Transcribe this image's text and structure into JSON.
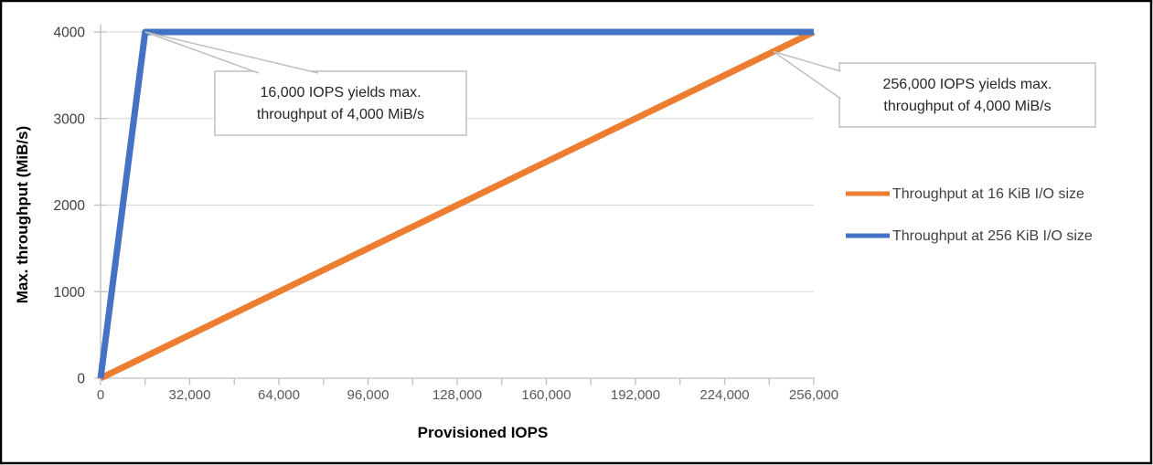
{
  "colors": {
    "series_16kib_orange": "#ED7D31",
    "series_256kib_blue": "#4472C4",
    "gridline": "#D9D9D9",
    "axis": "#BFBFBF",
    "x_tick_label": "#595959",
    "y_tick_label": "#404040",
    "callout_border": "#BFBFBF",
    "callout_fill": "#FFFFFF",
    "frame_border": "#000000"
  },
  "chart_data": {
    "type": "line",
    "title": "",
    "xlabel": "Provisioned IOPS",
    "ylabel": "Max. throughput (MiB/s)",
    "xlim": [
      0,
      256000
    ],
    "ylim": [
      0,
      4000
    ],
    "grid": "horizontal-only",
    "legend_position": "right-middle",
    "x_tick_minor_step": 16000,
    "x_tick_values": [
      0,
      32000,
      64000,
      96000,
      128000,
      160000,
      192000,
      224000,
      256000
    ],
    "x_tick_labels": [
      "0",
      "32,000",
      "64,000",
      "96,000",
      "128,000",
      "160,000",
      "192,000",
      "224,000",
      "256,000"
    ],
    "y_tick_values": [
      0,
      1000,
      2000,
      3000,
      4000
    ],
    "y_tick_labels": [
      "0",
      "1000",
      "2000",
      "3000",
      "4000"
    ],
    "series": [
      {
        "name": "Throughput at 16 KiB I/O size",
        "color": "#ED7D31",
        "points": [
          [
            0,
            0
          ],
          [
            256000,
            4000
          ]
        ]
      },
      {
        "name": "Throughput at 256 KiB I/O size",
        "color": "#4472C4",
        "points": [
          [
            0,
            0
          ],
          [
            16000,
            4000
          ],
          [
            256000,
            4000
          ]
        ]
      }
    ],
    "annotations": [
      {
        "lines": [
          "16,000 IOPS yields max.",
          "throughput of 4,000 MiB/s"
        ],
        "anchor": [
          16000,
          4000
        ]
      },
      {
        "lines": [
          "256,000 IOPS yields max.",
          "throughput of 4,000 MiB/s"
        ],
        "anchor": [
          241500,
          3773
        ]
      }
    ]
  }
}
